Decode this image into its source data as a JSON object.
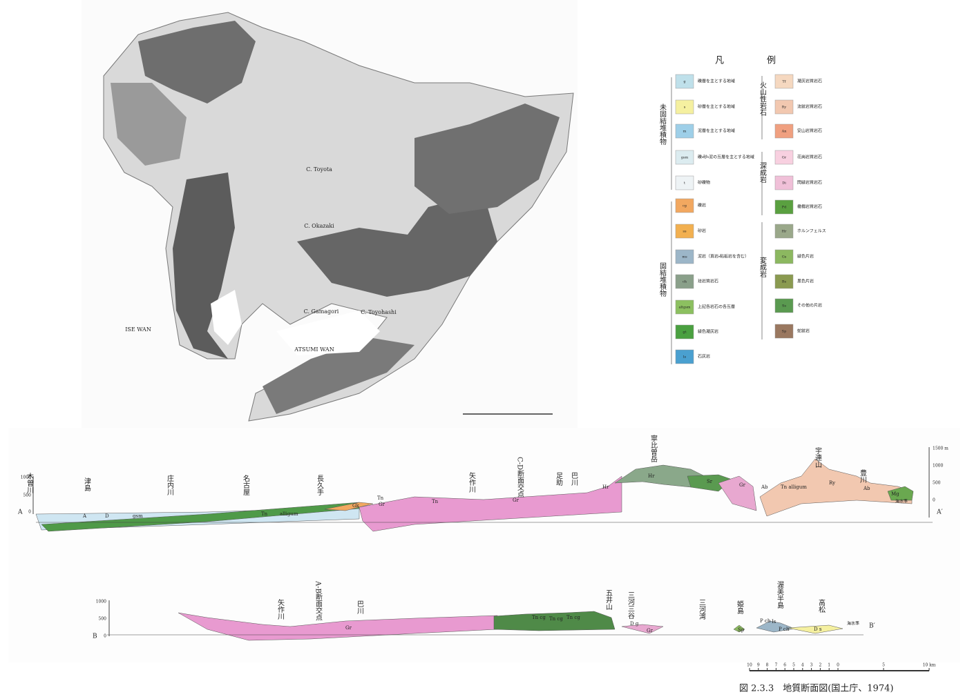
{
  "map": {
    "labels": [
      "ISE WAN",
      "ATSUMI WAN",
      "C. Toyota",
      "C. Okazaki",
      "C. Gamagori",
      "C. Toyohashi"
    ]
  },
  "legend": {
    "title": [
      "凡",
      "例"
    ],
    "groups": [
      {
        "label": "未固結堆積物",
        "items": [
          {
            "code": "g",
            "label": "礫層を主とする地域"
          },
          {
            "code": "s",
            "label": "砂層を主とする地域"
          },
          {
            "code": "m",
            "label": "泥層を主とする地域"
          },
          {
            "code": "gsm",
            "label": "礫・砂・泥の互層を主とする地域"
          },
          {
            "code": "t",
            "label": "砂礫物"
          }
        ]
      },
      {
        "label": "固結堆積物",
        "items": [
          {
            "code": "cg",
            "label": "礫岩"
          },
          {
            "code": "ss",
            "label": "砂岩"
          },
          {
            "code": "ms",
            "label": "泥岩（頁岩・粘板岩を含む）"
          },
          {
            "code": "ch",
            "label": "珪岩質岩石"
          },
          {
            "code": "altgsm",
            "label": "上記各岩石の各互層"
          },
          {
            "code": "gt",
            "label": "緑色凝灰岩"
          },
          {
            "code": "ls",
            "label": "石灰岩"
          }
        ]
      },
      {
        "label": "火山性岩石",
        "items": [
          {
            "code": "Tf",
            "label": "凝灰岩質岩石"
          },
          {
            "code": "Ry",
            "label": "流紋岩質岩石"
          },
          {
            "code": "An",
            "label": "安山岩質岩石"
          }
        ]
      },
      {
        "label": "深成岩",
        "items": [
          {
            "code": "Gr",
            "label": "花崗岩質岩石"
          },
          {
            "code": "Di",
            "label": "閃緑岩質岩石"
          },
          {
            "code": "Pd",
            "label": "橄欖岩質岩石"
          }
        ]
      },
      {
        "label": "変成岩",
        "items": [
          {
            "code": "Hr",
            "label": "ホルンフェルス"
          },
          {
            "code": "Gs",
            "label": "緑色片岩"
          },
          {
            "code": "Bs",
            "label": "黒色片岩"
          },
          {
            "code": "Ss",
            "label": "その他の片岩"
          },
          {
            "code": "Sp",
            "label": "蛇紋岩"
          }
        ]
      }
    ]
  },
  "section_a": {
    "start": "A",
    "end": "A′",
    "sea_level": "海水準",
    "axis_left": [
      "1000",
      "500",
      "0"
    ],
    "axis_right": [
      "1500 m",
      "1000",
      "500",
      "0"
    ],
    "places": [
      "木曽川",
      "津島",
      "庄内川",
      "名古屋",
      "長久手",
      "矢作川",
      "C-D断面交点",
      "足助",
      "巴川",
      "寧比曽岳",
      "宇連山",
      "豊川"
    ],
    "units": [
      "A",
      "D",
      "gsm",
      "Tn",
      "alligum",
      "Gk",
      "Tn",
      "Gr",
      "Tn",
      "Gr",
      "Hr",
      "Hr",
      "Sr",
      "Gr",
      "Ab",
      "Tn alligum",
      "Ry",
      "Ab",
      "Mg"
    ]
  },
  "section_b": {
    "start": "B",
    "end": "B′",
    "sea_level": "海水準",
    "axis_left": [
      "1000",
      "500",
      "0"
    ],
    "places": [
      "矢作川",
      "A-B断面交点",
      "巴川",
      "五井山",
      "三河三谷",
      "三河湾",
      "姫島",
      "渥美半島",
      "高松"
    ],
    "units": [
      "Gr",
      "Tn cg",
      "Tn cg",
      "Tn cg",
      "D g",
      "Gr",
      "Sp",
      "P ch",
      "Is",
      "P ch",
      "D s"
    ]
  },
  "scale_bar": {
    "ticks": [
      "10",
      "9",
      "8",
      "7",
      "6",
      "5",
      "4",
      "3",
      "2",
      "1",
      "0",
      "5",
      "10 km"
    ]
  },
  "caption": "図 2.3.3　地質断面図(国土庁、1974)"
}
